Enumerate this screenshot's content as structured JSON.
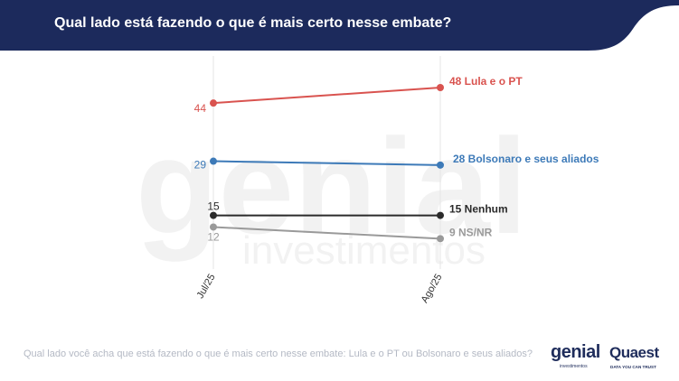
{
  "header": {
    "title": "Qual lado está fazendo o que é mais certo nesse embate?",
    "color": "#1c2a5c"
  },
  "chart_data": {
    "type": "line",
    "categories": [
      "Jul/25",
      "Ago/25"
    ],
    "ylim": [
      0,
      55
    ],
    "grid": false,
    "series": [
      {
        "name": "Lula e o PT",
        "values": [
          44,
          48
        ],
        "color": "#d9534f",
        "end_label": "48 Lula e o PT"
      },
      {
        "name": "Bolsonaro e seus aliados",
        "values": [
          29,
          28
        ],
        "color": "#3d7ab8",
        "end_label": "28 Bolsonaro e seus aliados"
      },
      {
        "name": "Nenhum",
        "values": [
          15,
          15
        ],
        "color": "#2b2b2b",
        "end_label": "15 Nenhum"
      },
      {
        "name": "NS/NR",
        "values": [
          12,
          9
        ],
        "color": "#9a9a9a",
        "end_label": "9 NS/NR"
      }
    ]
  },
  "footer": {
    "question": "Qual lado você acha que está fazendo o que é mais certo nesse embate: Lula e o PT ou Bolsonaro e seus aliados?"
  },
  "logos": {
    "genial": "genial",
    "genial_sub": "investimentos",
    "quaest": "Quaest",
    "quaest_tagline": "DATA YOU CAN TRUST"
  },
  "watermark": {
    "word": "genial",
    "sub": "investimentos"
  }
}
